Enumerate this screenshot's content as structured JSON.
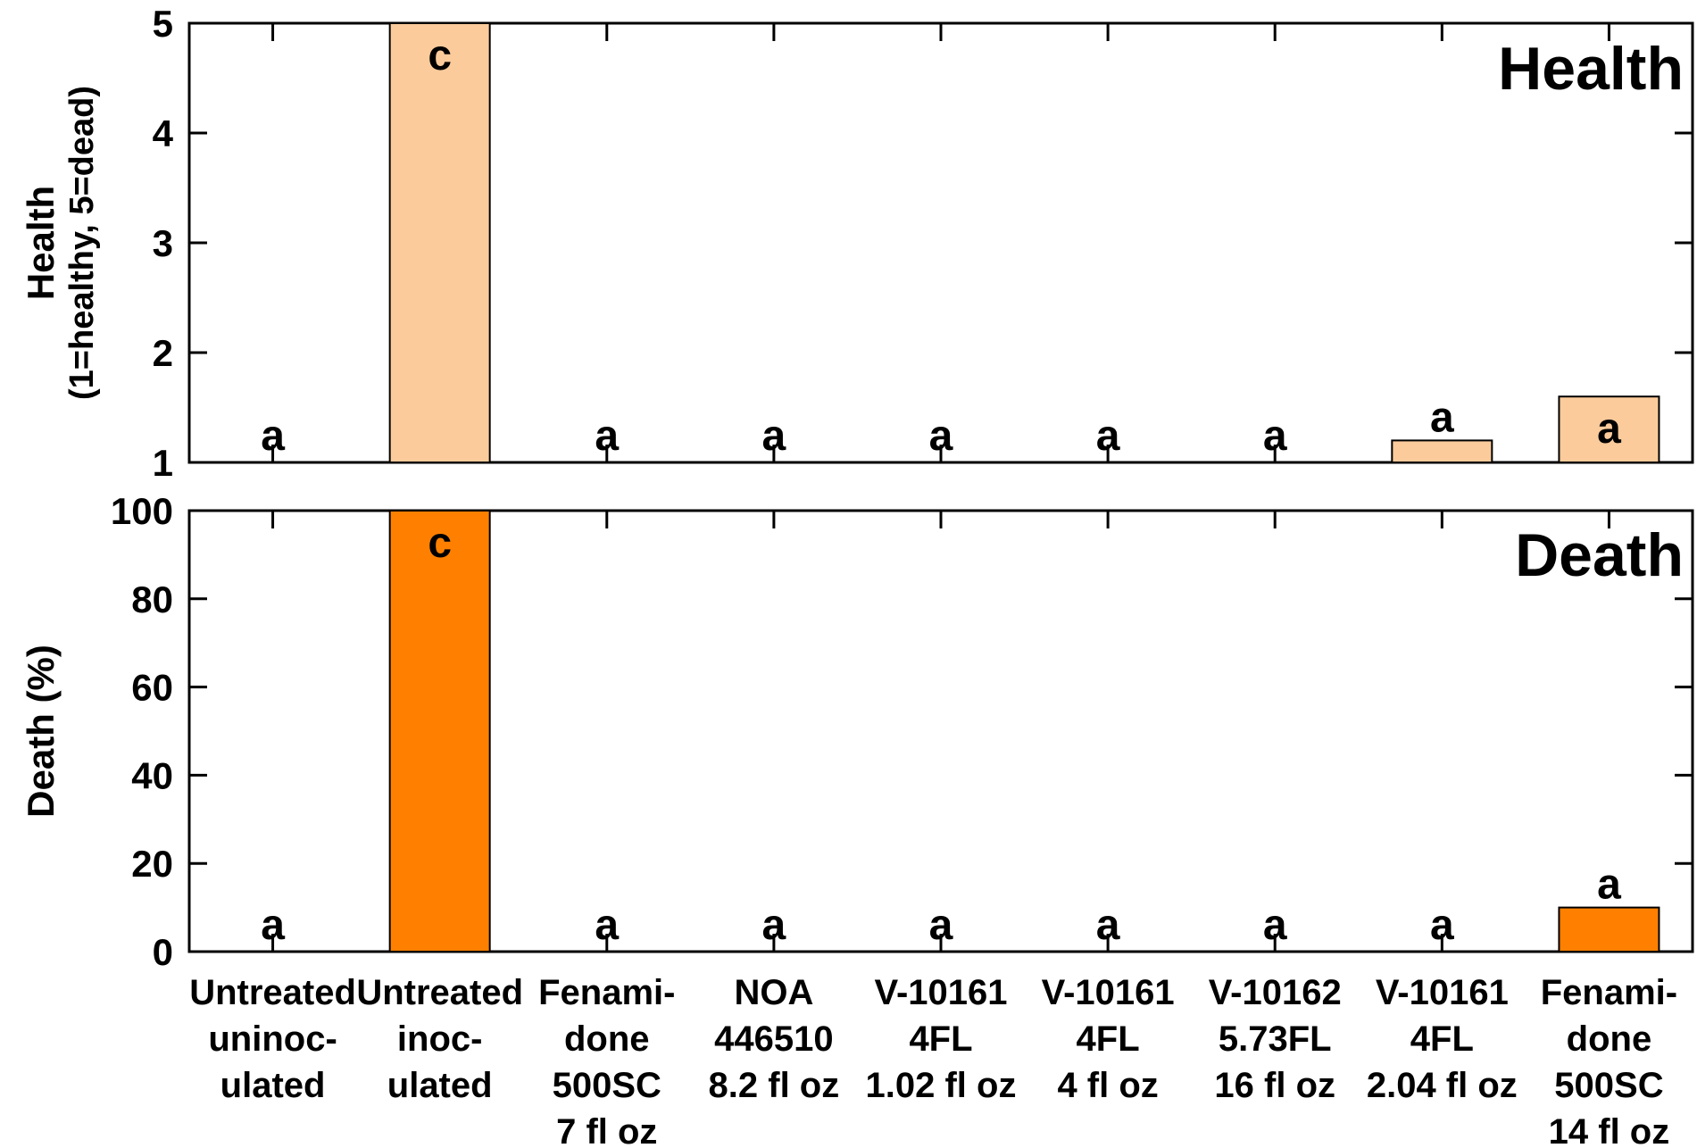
{
  "colors": {
    "health_fill": "#FBCB9B",
    "death_fill": "#FF8000",
    "outline": "#000000"
  },
  "categories": [
    [
      "Untreated",
      "uninoc-",
      "ulated"
    ],
    [
      "Untreated",
      "inoc-",
      "ulated"
    ],
    [
      "Fenami-",
      "done",
      "500SC",
      "7 fl oz"
    ],
    [
      "NOA",
      "446510",
      "8.2 fl oz"
    ],
    [
      "V-10161",
      "4FL",
      "1.02 fl oz"
    ],
    [
      "V-10161",
      "4FL",
      "4 fl oz"
    ],
    [
      "V-10162",
      "5.73FL",
      "16 fl oz"
    ],
    [
      "V-10161",
      "4FL",
      "2.04 fl oz"
    ],
    [
      "Fenami-",
      "done",
      "500SC",
      "14 fl oz"
    ]
  ],
  "chart_data": [
    {
      "type": "bar",
      "panel_label": "Health",
      "ylabel": "Health",
      "ylabel_sub": "(1=healthy, 5=dead)",
      "ylim": [
        1,
        5
      ],
      "yticks": [
        1,
        2,
        3,
        4,
        5
      ],
      "values": [
        1,
        5,
        1,
        1,
        1,
        1,
        1,
        1.2,
        1.6
      ],
      "letters": [
        "a",
        "c",
        "a",
        "a",
        "a",
        "a",
        "a",
        "a",
        "a"
      ],
      "grid": false
    },
    {
      "type": "bar",
      "panel_label": "Death",
      "ylabel": "Death (%)",
      "ylim": [
        0,
        100
      ],
      "yticks": [
        0,
        20,
        40,
        60,
        80,
        100
      ],
      "values": [
        0,
        100,
        0,
        0,
        0,
        0,
        0,
        0,
        10
      ],
      "letters": [
        "a",
        "c",
        "a",
        "a",
        "a",
        "a",
        "a",
        "a",
        "a"
      ],
      "grid": false
    }
  ]
}
